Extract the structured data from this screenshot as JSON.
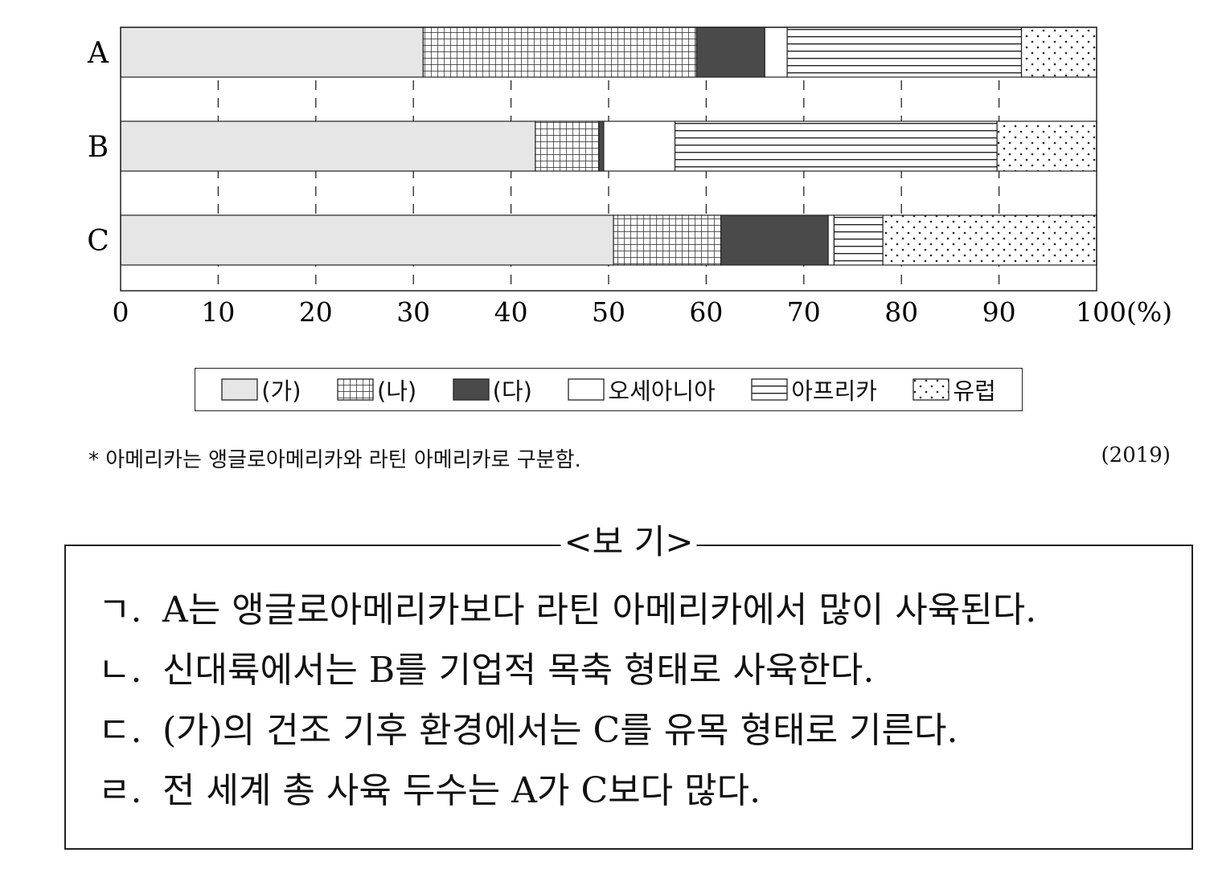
{
  "chart_data": {
    "type": "bar",
    "orientation": "horizontal",
    "stacked": true,
    "categories": [
      "A",
      "B",
      "C"
    ],
    "series": [
      {
        "name": "(가)",
        "values": [
          31,
          42.5,
          50.5
        ],
        "pattern": "light-gray"
      },
      {
        "name": "(나)",
        "values": [
          28,
          6.5,
          11
        ],
        "pattern": "grid"
      },
      {
        "name": "(다)",
        "values": [
          7,
          0.5,
          11
        ],
        "pattern": "dark"
      },
      {
        "name": "오세아니아",
        "values": [
          2.3,
          7.3,
          0.6
        ],
        "pattern": "white"
      },
      {
        "name": "아프리카",
        "values": [
          24,
          33,
          5
        ],
        "pattern": "horizontal-lines"
      },
      {
        "name": "유럽",
        "values": [
          7.7,
          10.2,
          21.9
        ],
        "pattern": "dots"
      }
    ],
    "x_ticks": [
      "0",
      "10",
      "20",
      "30",
      "40",
      "50",
      "60",
      "70",
      "80",
      "90",
      "100(%)"
    ],
    "xlim": [
      0,
      100
    ],
    "grid": "vertical-dashed",
    "legend_position": "bottom"
  },
  "note": "* 아메리카는 앵글로아메리카와 라틴 아메리카로 구분함.",
  "year": "(2019)",
  "bogi": {
    "title": "<보 기>",
    "items": [
      {
        "marker": "ㄱ.",
        "text": "A는 앵글로아메리카보다 라틴 아메리카에서 많이 사육된다."
      },
      {
        "marker": "ㄴ.",
        "text": "신대륙에서는 B를 기업적 목축 형태로 사육한다."
      },
      {
        "marker": "ㄷ.",
        "text": "(가)의 건조 기후 환경에서는 C를 유목 형태로 기른다."
      },
      {
        "marker": "ㄹ.",
        "text": "전 세계 총 사육 두수는 A가 C보다 많다."
      }
    ]
  },
  "colors": {
    "light_gray": "#e6e6e6",
    "dark": "#4a4a4a",
    "line": "#222222"
  }
}
